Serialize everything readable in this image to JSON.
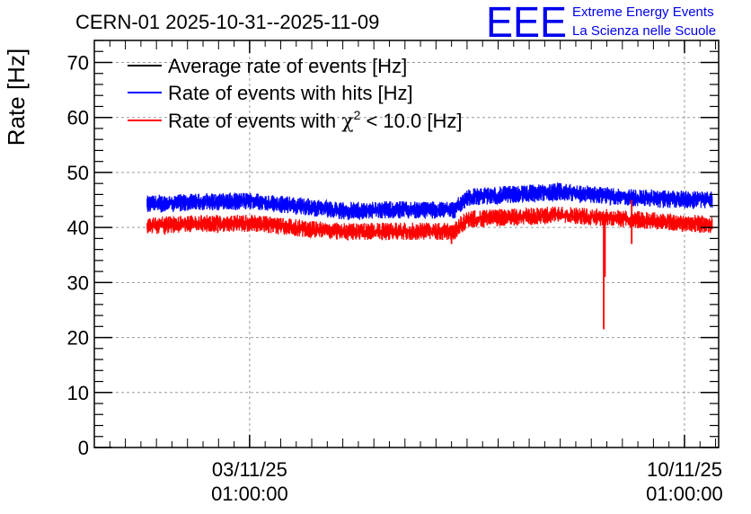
{
  "title": "CERN-01 2025-10-31--2025-11-09",
  "logo": {
    "mark": "EEE",
    "line1": "Extreme Energy Events",
    "line2": "La Scienza nelle Scuole",
    "color": "#0000ee"
  },
  "chart_data": {
    "type": "line",
    "title": "CERN-01 2025-10-31--2025-11-09",
    "ylabel": "Rate [Hz]",
    "xlabel": "",
    "ylim": [
      0,
      74
    ],
    "xlim_days": [
      0,
      10.05
    ],
    "y_ticks": [
      0,
      10,
      20,
      30,
      40,
      50,
      60,
      70
    ],
    "y_tick_labels": [
      "0",
      "10",
      "20",
      "30",
      "40",
      "50",
      "60",
      "70"
    ],
    "x_ticks": [
      {
        "day": 2.5,
        "line1": "03/11/25",
        "line2": "01:00:00"
      },
      {
        "day": 9.5,
        "line1": "10/11/25",
        "line2": "01:00:00"
      }
    ],
    "grid": true,
    "legend_position": "top-left",
    "legend": [
      {
        "label": "Average rate of events [Hz]",
        "color": "#000000"
      },
      {
        "label": "Rate of events with hits [Hz]",
        "color": "#0000ff"
      },
      {
        "label_prefix": "Rate of events with ",
        "label_symbol": "χ",
        "label_sup": "2",
        "label_suffix": " < 10.0 [Hz]",
        "color": "#ff0000"
      }
    ],
    "series": [
      {
        "name": "Rate of events with hits [Hz]",
        "color": "#0000ff",
        "noise": 1.6,
        "start_day": 0.85,
        "end_day": 9.95,
        "points": [
          [
            0.85,
            44.2
          ],
          [
            1.5,
            44.5
          ],
          [
            2.5,
            44.8
          ],
          [
            3.2,
            44.0
          ],
          [
            4.0,
            43.0
          ],
          [
            4.8,
            43.2
          ],
          [
            5.8,
            43.2
          ],
          [
            6.0,
            45.5
          ],
          [
            7.0,
            46.2
          ],
          [
            7.5,
            46.5
          ],
          [
            8.2,
            45.8
          ],
          [
            9.0,
            45.2
          ],
          [
            9.95,
            45.0
          ]
        ]
      },
      {
        "name": "Rate of events with χ² < 10.0 [Hz]",
        "color": "#ff0000",
        "noise": 1.6,
        "start_day": 0.85,
        "end_day": 9.95,
        "points": [
          [
            0.85,
            40.3
          ],
          [
            1.5,
            40.6
          ],
          [
            2.5,
            40.8
          ],
          [
            3.2,
            40.0
          ],
          [
            4.0,
            39.2
          ],
          [
            4.8,
            39.3
          ],
          [
            5.8,
            39.3
          ],
          [
            6.0,
            41.5
          ],
          [
            7.0,
            42.0
          ],
          [
            7.5,
            42.3
          ],
          [
            8.2,
            41.8
          ],
          [
            9.0,
            41.2
          ],
          [
            9.95,
            40.5
          ]
        ],
        "dips": [
          {
            "day": 8.2,
            "min": 21.5
          },
          {
            "day": 8.22,
            "min": 31.0
          },
          {
            "day": 5.75,
            "min": 37.0
          },
          {
            "day": 8.65,
            "min": 37.0
          }
        ],
        "spikes": [
          {
            "day": 8.65,
            "max": 45.0
          }
        ]
      }
    ]
  }
}
